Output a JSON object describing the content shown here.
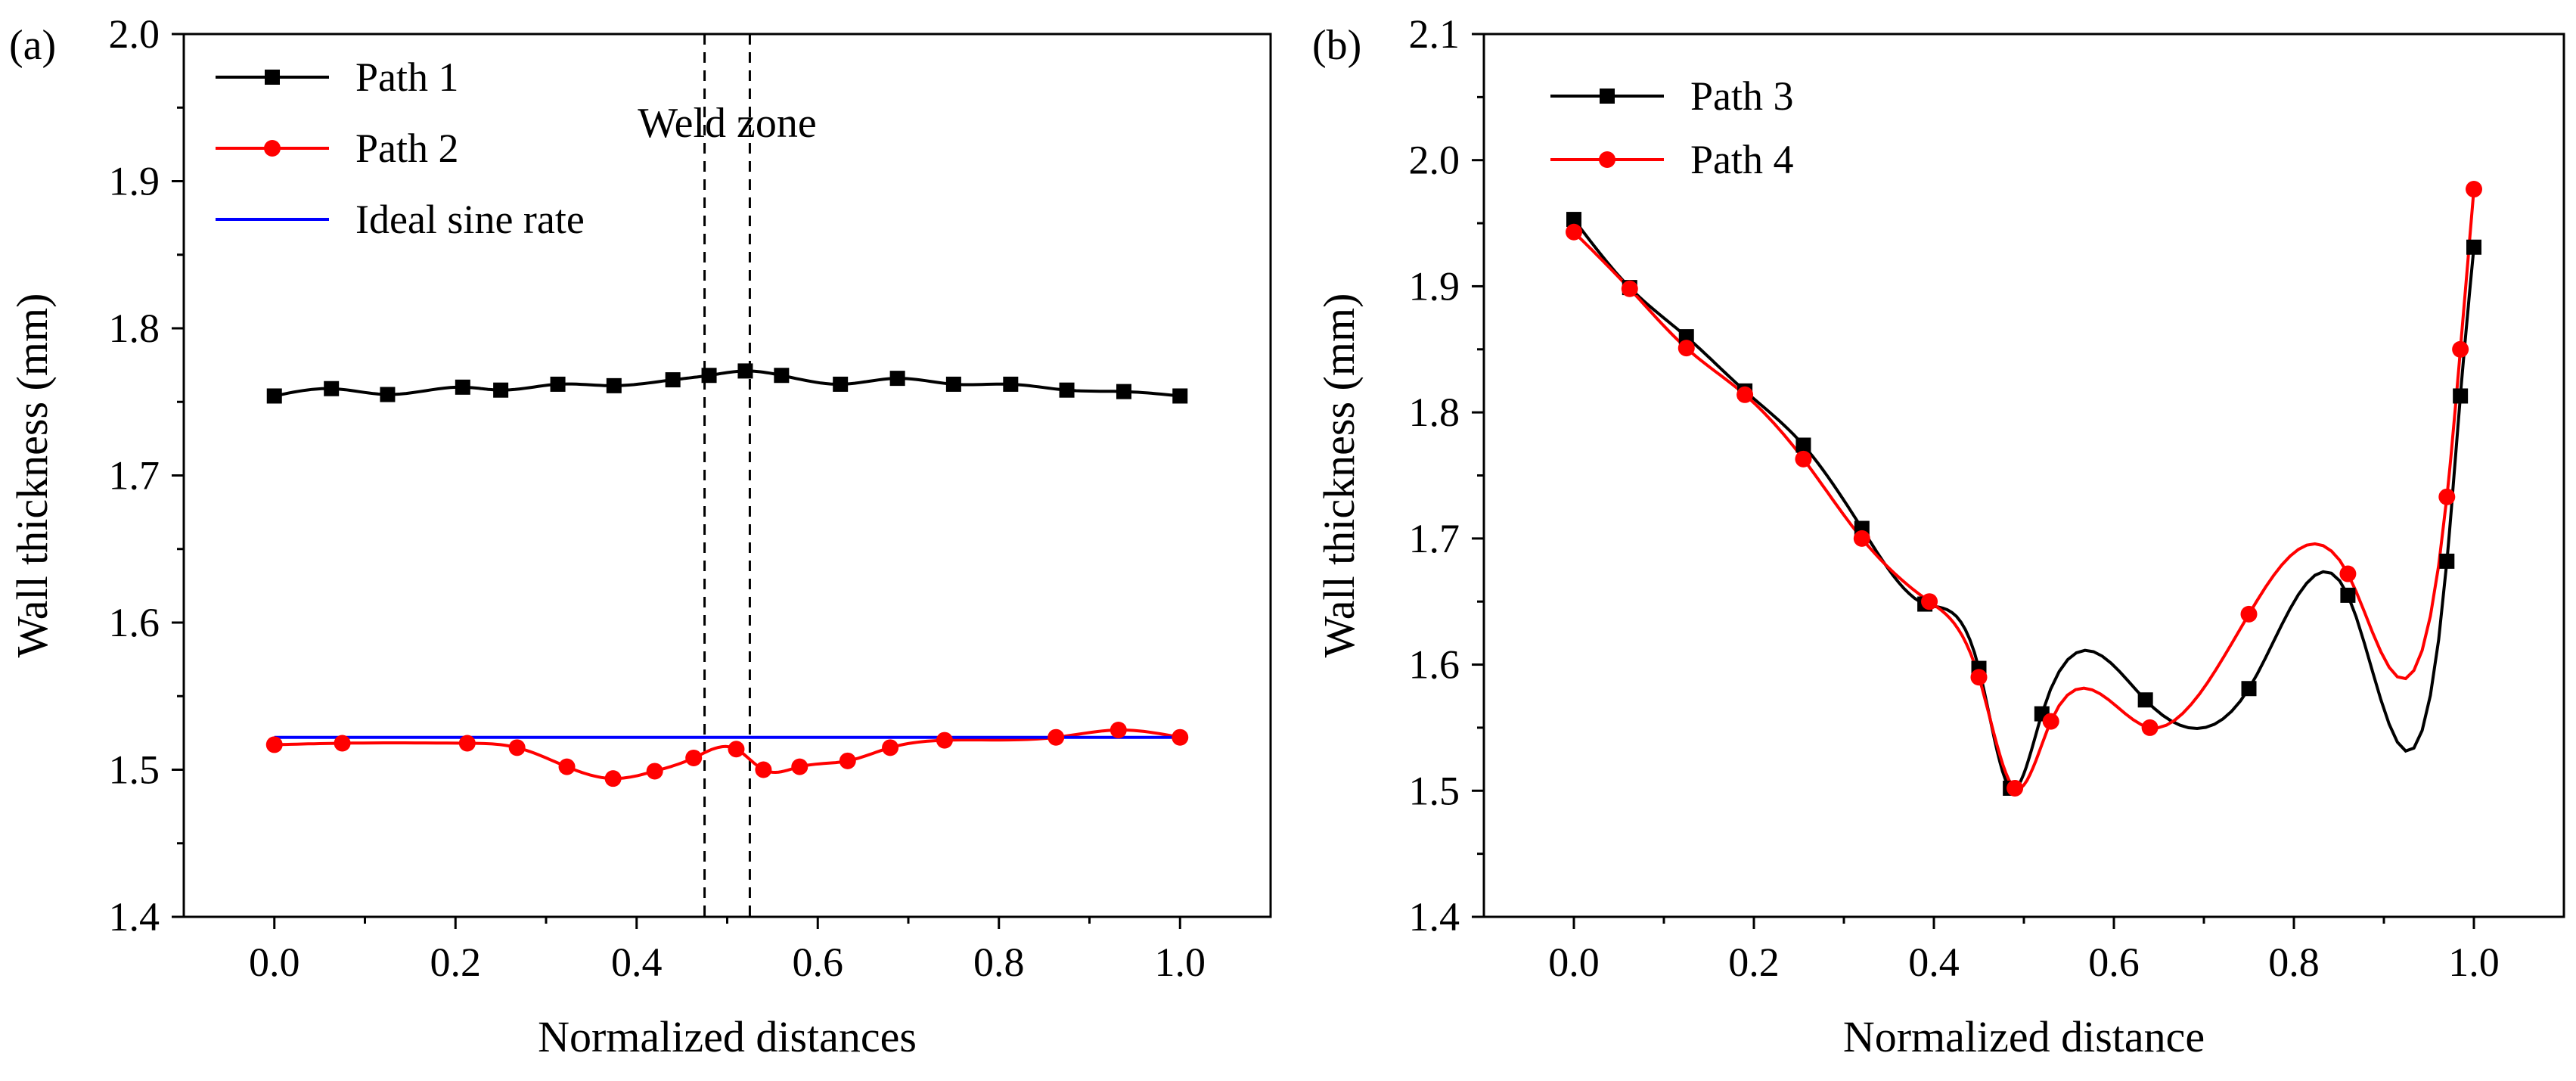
{
  "chart_data": [
    {
      "panel_tag": "(a)",
      "type": "line",
      "xlabel": "Normalized distances",
      "ylabel": "Wall thickness (mm)",
      "xlim": [
        -0.1,
        1.1
      ],
      "ylim": [
        1.4,
        2.0
      ],
      "xticks": [
        0.0,
        0.2,
        0.4,
        0.6,
        0.8,
        1.0
      ],
      "xtick_labels": [
        "0.0",
        "0.2",
        "0.4",
        "0.6",
        "0.8",
        "1.0"
      ],
      "yticks": [
        1.4,
        1.5,
        1.6,
        1.7,
        1.8,
        1.9,
        2.0
      ],
      "ytick_labels": [
        "1.4",
        "1.5",
        "1.6",
        "1.7",
        "1.8",
        "1.9",
        "2.0"
      ],
      "legend_position": "top-left",
      "grid": false,
      "series": [
        {
          "name": "Path 1",
          "color": "#000000",
          "marker": "square",
          "x": [
            0.0,
            0.063,
            0.125,
            0.208,
            0.25,
            0.313,
            0.375,
            0.44,
            0.48,
            0.52,
            0.56,
            0.625,
            0.688,
            0.75,
            0.813,
            0.875,
            0.938,
            1.0
          ],
          "y": [
            1.754,
            1.759,
            1.755,
            1.76,
            1.758,
            1.762,
            1.761,
            1.765,
            1.768,
            1.771,
            1.768,
            1.762,
            1.766,
            1.762,
            1.762,
            1.758,
            1.757,
            1.754
          ]
        },
        {
          "name": "Path 2",
          "color": "#ff0000",
          "marker": "circle",
          "x": [
            0.0,
            0.075,
            0.213,
            0.268,
            0.323,
            0.374,
            0.42,
            0.463,
            0.51,
            0.54,
            0.58,
            0.633,
            0.68,
            0.74,
            0.863,
            0.932,
            1.0
          ],
          "y": [
            1.517,
            1.518,
            1.518,
            1.515,
            1.502,
            1.494,
            1.499,
            1.508,
            1.514,
            1.5,
            1.502,
            1.506,
            1.515,
            1.52,
            1.522,
            1.527,
            1.522
          ]
        },
        {
          "name": "Ideal sine rate",
          "color": "#0000ff",
          "marker": "none",
          "x": [
            0.0,
            1.0
          ],
          "y": [
            1.522,
            1.522
          ]
        }
      ],
      "vlines": [
        0.475,
        0.525
      ],
      "annotations": [
        {
          "text": "Weld zone",
          "x": 0.5,
          "y": 1.93
        }
      ]
    },
    {
      "panel_tag": "(b)",
      "type": "line",
      "xlabel": "Normalized distance",
      "ylabel": "Wall thickness (mm)",
      "xlim": [
        -0.1,
        1.1
      ],
      "ylim": [
        1.4,
        2.1
      ],
      "xticks": [
        0.0,
        0.2,
        0.4,
        0.6,
        0.8,
        1.0
      ],
      "xtick_labels": [
        "0.0",
        "0.2",
        "0.4",
        "0.6",
        "0.8",
        "1.0"
      ],
      "yticks": [
        1.4,
        1.5,
        1.6,
        1.7,
        1.8,
        1.9,
        2.0,
        2.1
      ],
      "ytick_labels": [
        "1.4",
        "1.5",
        "1.6",
        "1.7",
        "1.8",
        "1.9",
        "2.0",
        "2.1"
      ],
      "legend_position": "top-left",
      "grid": false,
      "series": [
        {
          "name": "Path 3",
          "color": "#000000",
          "marker": "square",
          "x": [
            0.0,
            0.062,
            0.125,
            0.19,
            0.255,
            0.32,
            0.39,
            0.45,
            0.485,
            0.52,
            0.635,
            0.75,
            0.86,
            0.97,
            0.985,
            1.0
          ],
          "y": [
            1.953,
            1.899,
            1.86,
            1.817,
            1.774,
            1.708,
            1.648,
            1.597,
            1.502,
            1.561,
            1.572,
            1.581,
            1.655,
            1.682,
            1.813,
            1.931
          ]
        },
        {
          "name": "Path 4",
          "color": "#ff0000",
          "marker": "circle",
          "x": [
            0.0,
            0.062,
            0.125,
            0.19,
            0.255,
            0.32,
            0.395,
            0.45,
            0.49,
            0.53,
            0.64,
            0.75,
            0.86,
            0.97,
            0.985,
            1.0
          ],
          "y": [
            1.943,
            1.898,
            1.851,
            1.814,
            1.763,
            1.7,
            1.65,
            1.59,
            1.502,
            1.555,
            1.55,
            1.64,
            1.672,
            1.733,
            1.85,
            1.977
          ]
        }
      ],
      "vlines": [],
      "annotations": []
    }
  ]
}
